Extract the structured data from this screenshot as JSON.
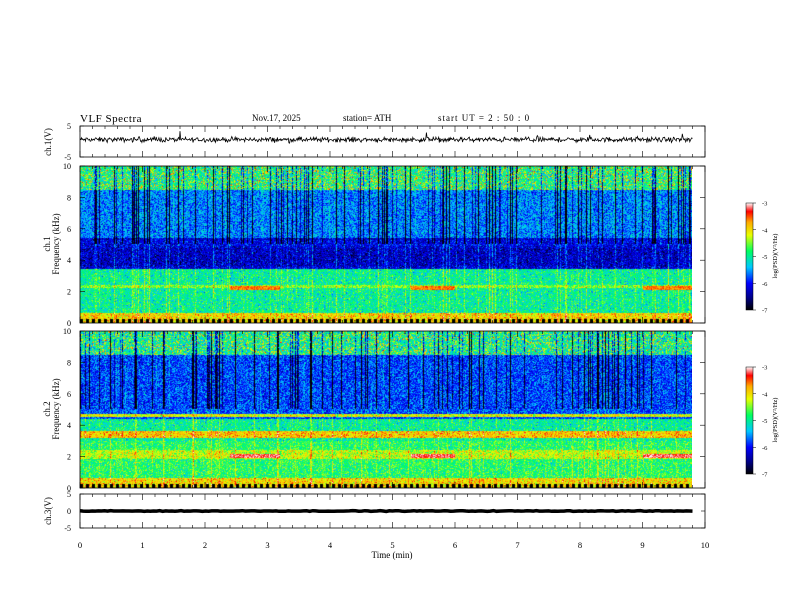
{
  "header": {
    "title": "VLF  Spectra",
    "date": "Nov.17, 2025",
    "station": "station= ATH",
    "start": "start  UT  =   2  : 50 : 0"
  },
  "chart_data": [
    {
      "type": "line",
      "panel": "ch1-waveform",
      "ylabel": "ch.1(V)",
      "ylim": [
        -5,
        5
      ],
      "yticks": [
        "5",
        "-5"
      ],
      "xlim": [
        0,
        10
      ],
      "mean_value": 0.6,
      "noise_amplitude": 0.6
    },
    {
      "type": "heatmap",
      "panel": "ch1-spectrogram",
      "ylabel_line1": "ch.1",
      "ylabel_line2": "Frequency  (kHz)",
      "ylim": [
        0,
        10
      ],
      "yticks": [
        "0",
        "2",
        "4",
        "6",
        "8",
        "10"
      ],
      "xlim": [
        0,
        10
      ],
      "colorbar": {
        "label": "log(PSD)(V²/Hz)",
        "range": [
          -7,
          -3
        ],
        "ticks": [
          "-3",
          "-4",
          "-5",
          "-6",
          "-7"
        ]
      },
      "bands": [
        {
          "f0": 2.2,
          "f1": 2.4,
          "level": -4.5
        },
        {
          "f0": 3.6,
          "f1": 4.8,
          "level": -6.3
        },
        {
          "f0": 4.9,
          "f1": 5.3,
          "level": -6.1
        }
      ],
      "highlight_segments": [
        {
          "t0": 2.4,
          "t1": 3.2,
          "f": 2.2,
          "level": -3.6
        },
        {
          "t0": 5.3,
          "t1": 6.0,
          "f": 2.2,
          "level": -3.6
        },
        {
          "t0": 9.0,
          "t1": 9.8,
          "f": 2.2,
          "level": -3.6
        }
      ]
    },
    {
      "type": "heatmap",
      "panel": "ch2-spectrogram",
      "ylabel_line1": "ch.2",
      "ylabel_line2": "Frequency  (kHz)",
      "ylim": [
        0,
        10
      ],
      "yticks": [
        "0",
        "2",
        "4",
        "6",
        "8",
        "10"
      ],
      "xlim": [
        0,
        10
      ],
      "colorbar": {
        "label": "log(PSD)(V²/Hz)",
        "range": [
          -7,
          -3
        ],
        "ticks": [
          "-3",
          "-4",
          "-5",
          "-6",
          "-7"
        ]
      },
      "bands": [
        {
          "f0": 3.2,
          "f1": 3.6,
          "level": -3.9
        },
        {
          "f0": 4.5,
          "f1": 4.7,
          "level": -4.2
        },
        {
          "f0": 1.8,
          "f1": 2.4,
          "level": -4.3
        }
      ],
      "highlight_segments": [
        {
          "t0": 2.4,
          "t1": 3.2,
          "f": 2.0,
          "level": -3.2
        },
        {
          "t0": 5.3,
          "t1": 6.0,
          "f": 2.0,
          "level": -3.2
        },
        {
          "t0": 9.0,
          "t1": 9.8,
          "f": 2.0,
          "level": -3.2
        }
      ]
    },
    {
      "type": "line",
      "panel": "ch3-waveform",
      "ylabel": "ch.3(V)",
      "ylim": [
        -5,
        5
      ],
      "yticks": [
        "5",
        "0",
        "-5"
      ],
      "xlim": [
        0,
        10
      ],
      "mean_value": 0.0,
      "noise_amplitude": 0.08
    }
  ],
  "x_axis": {
    "label": "Time  (min)",
    "ticks": [
      "0",
      "1",
      "2",
      "3",
      "4",
      "5",
      "6",
      "7",
      "8",
      "9",
      "10"
    ]
  }
}
